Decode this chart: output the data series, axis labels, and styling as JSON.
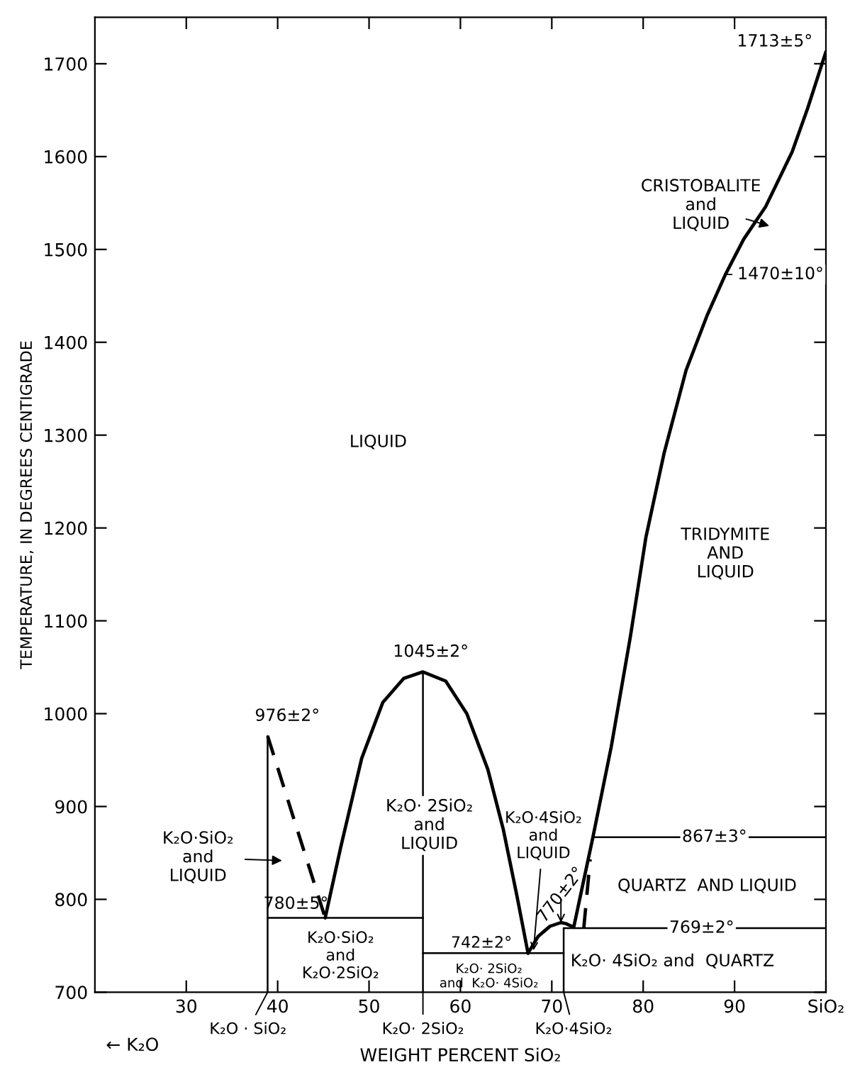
{
  "chart_data": {
    "type": "line",
    "xlabel": "WEIGHT PERCENT SiO₂",
    "ylabel": "TEMPERATURE, IN DEGREES CENTIGRADE",
    "xlim": [
      20,
      100
    ],
    "ylim": [
      700,
      1750
    ],
    "xticks": [
      30,
      40,
      50,
      60,
      70,
      80,
      90,
      {
        "value": 100,
        "label": "SiO₂"
      }
    ],
    "yticks": [
      700,
      800,
      900,
      1000,
      1100,
      1200,
      1300,
      1400,
      1500,
      1600,
      1700
    ],
    "grid": false,
    "legend": false,
    "marker": "none",
    "series": [
      {
        "color": "#000000",
        "line_style": "dashed",
        "x": [
          38.9,
          45.2
        ],
        "values": [
          976,
          780
        ]
      },
      {
        "color": "#000000",
        "line_style": "solid",
        "x": [
          45.2,
          46.9,
          49.2,
          51.5,
          53.8,
          55.9,
          58.4,
          60.7,
          63.0,
          64.7,
          66.2,
          67.4
        ],
        "values": [
          780,
          856,
          952,
          1012,
          1038,
          1045,
          1035,
          1000,
          940,
          875,
          803,
          742
        ]
      },
      {
        "color": "#000000",
        "line_style": "solid",
        "x": [
          67.4,
          68.5,
          69.8,
          71.0,
          71.5,
          72.4,
          74.5,
          76.5,
          78.6,
          80.3,
          82.3,
          84.7,
          87.0,
          89.0,
          91.0,
          93.4,
          96.3,
          98.0,
          100
        ],
        "values": [
          742,
          760,
          771,
          775,
          774,
          770,
          867,
          964,
          1083,
          1190,
          1281,
          1370,
          1429,
          1473,
          1511,
          1546,
          1605,
          1652,
          1713
        ]
      },
      {
        "color": "#000000",
        "line_style": "dashed",
        "x": [
          73.5,
          74.2
        ],
        "values": [
          769,
          843
        ]
      },
      {
        "color": "#000000",
        "line_style": "solid",
        "x": [
          38.9,
          55.9
        ],
        "values": [
          780,
          780
        ]
      },
      {
        "color": "#000000",
        "line_style": "solid",
        "x": [
          55.9,
          71.3
        ],
        "values": [
          742,
          742
        ]
      },
      {
        "color": "#000000",
        "line_style": "solid",
        "x": [
          71.3,
          100
        ],
        "values": [
          769,
          769
        ]
      },
      {
        "color": "#000000",
        "line_style": "solid",
        "x": [
          74.5,
          100
        ],
        "values": [
          867,
          867
        ]
      },
      {
        "color": "#000000",
        "line_style": "solid",
        "x": [
          38.9,
          38.9
        ],
        "values": [
          700,
          976
        ]
      },
      {
        "color": "#000000",
        "line_style": "solid",
        "x": [
          55.9,
          55.9
        ],
        "values": [
          700,
          1045
        ]
      },
      {
        "color": "#000000",
        "line_style": "solid",
        "x": [
          71.3,
          71.3
        ],
        "values": [
          700,
          769
        ]
      }
    ],
    "annotations": [
      {
        "text": "1713±5°",
        "x": 100,
        "y": 1713
      },
      "CRISTOBALITE\nand\nLIQUID",
      {
        "text": "1470±10°",
        "x": 89.0,
        "y": 1473
      },
      "LIQUID",
      "TRIDYMITE\nAND\nLIQUID",
      {
        "text": "1045±2°",
        "x": 55.9,
        "y": 1045
      },
      {
        "text": "976±2°",
        "x": 38.9,
        "y": 976
      },
      "K₂O·SiO₂\nand\nLIQUID",
      "K₂O· 2SiO₂\nand\nLIQUID",
      {
        "text": "K₂O·4SiO₂\nand\nLIQUID",
        "x": 68.0,
        "y": 745
      },
      {
        "text": "770±2°",
        "x": 71.0,
        "y": 775
      },
      {
        "text": "867±3°",
        "x": 87.8,
        "y": 867
      },
      "QUARTZ  AND LIQUID",
      {
        "text": "769±2°",
        "x": 86.4,
        "y": 769
      },
      "K₂O· 4SiO₂ and  QUARTZ",
      {
        "text": "780±5°",
        "x": 42.0,
        "y": 780
      },
      "K₂O·SiO₂\nand\nK₂O·2SiO₂",
      {
        "text": "742±2°",
        "x": 62.3,
        "y": 742
      },
      "K₂O· 2SiO₂\nand  K₂O· 4SiO₂",
      {
        "text": "K₂O · SiO₂",
        "x": 38.9,
        "y": 700
      },
      {
        "text": "K₂O· 2SiO₂",
        "x": 55.9,
        "y": 700
      },
      {
        "text": "K₂O·4SiO₂",
        "x": 71.3,
        "y": 700
      },
      "← K₂O"
    ]
  }
}
